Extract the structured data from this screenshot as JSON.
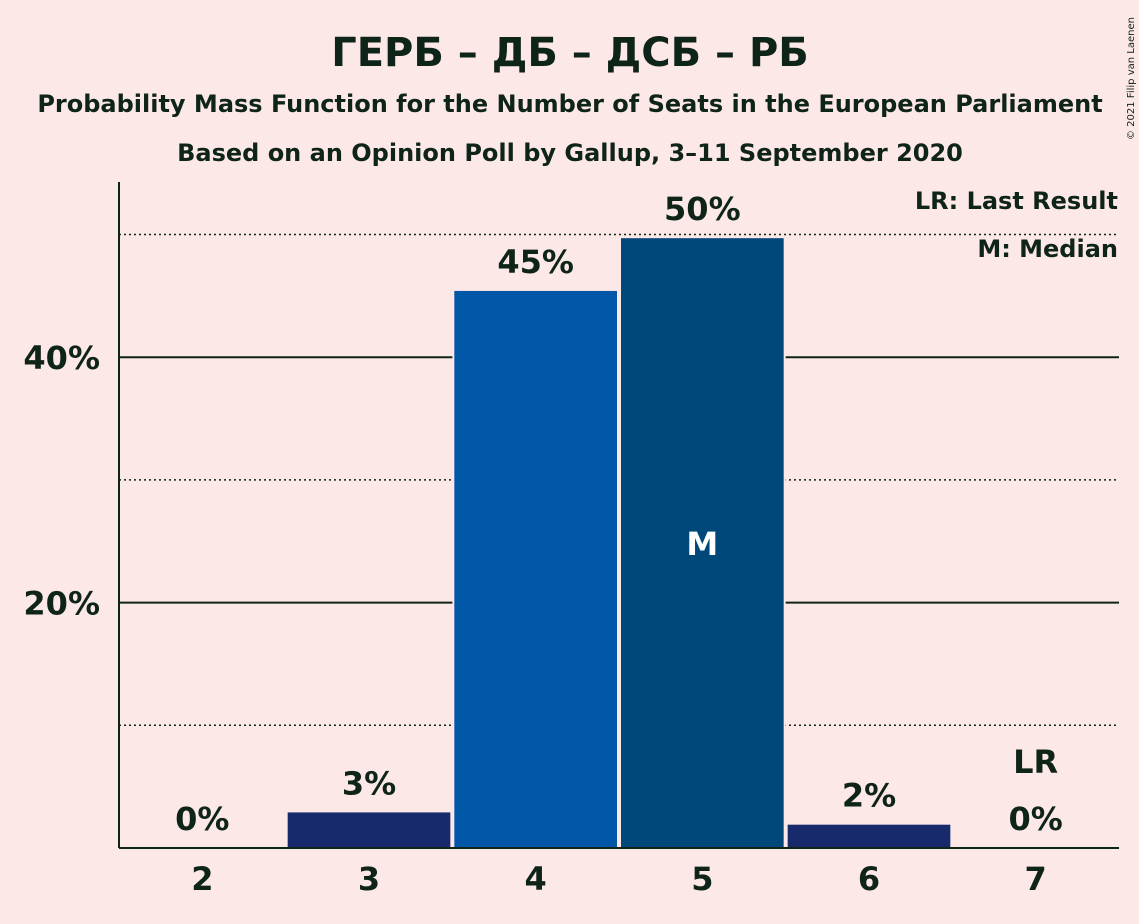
{
  "chart_data": {
    "type": "bar",
    "title": "ГЕРБ – ДБ – ДСБ – РБ",
    "subtitle": "Probability Mass Function for the Number of Seats in the European Parliament",
    "subtitle2": "Based on an Opinion Poll by Gallup, 3–11 September 2020",
    "copyright": "© 2021 Filip van Laenen",
    "categories": [
      "2",
      "3",
      "4",
      "5",
      "6",
      "7"
    ],
    "values": [
      0,
      2.9,
      45.4,
      49.7,
      1.9,
      0
    ],
    "data_labels": [
      "0%",
      "3%",
      "45%",
      "50%",
      "2%",
      "0%"
    ],
    "bar_colors": [
      "#172A6B",
      "#172A6B",
      "#0057A8",
      "#00487A",
      "#172A6B",
      "#172A6B"
    ],
    "ylim": [
      0,
      54
    ],
    "y_ticks": [
      {
        "value": 20,
        "label": "20%"
      },
      {
        "value": 40,
        "label": "40%"
      }
    ],
    "minor_gridlines": [
      10,
      30,
      50
    ],
    "median_category": "5",
    "median_marker": "M",
    "last_result_category": "7",
    "last_result_marker": "LR",
    "legend": {
      "position": "top-right",
      "lr_text": "LR: Last Result",
      "m_text": "M: Median"
    }
  }
}
